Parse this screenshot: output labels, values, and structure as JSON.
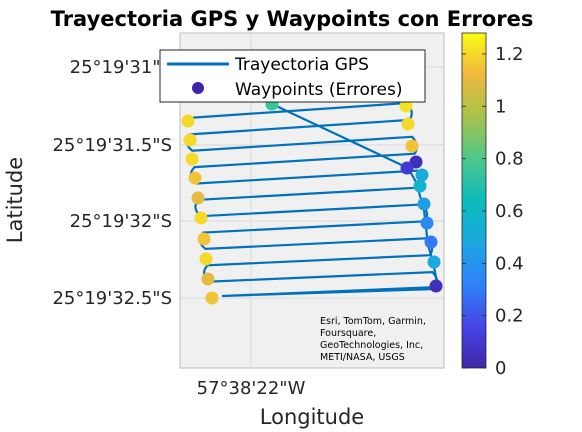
{
  "chart_data": {
    "type": "scatter",
    "title": "Trayectoria GPS y Waypoints con Errores",
    "xlabel": "Longitude",
    "ylabel": "Latitude",
    "x_ticks": [
      "57°38'22\"W"
    ],
    "y_ticks": [
      "25°19'31\"S",
      "25°19'31.5\"S",
      "25°19'32\"S",
      "25°19'32.5\"S"
    ],
    "legend": {
      "placement": "top",
      "entries": [
        {
          "label": "Trayectoria GPS",
          "kind": "line",
          "color": "#0072BD"
        },
        {
          "label": "Waypoints (Errores)",
          "kind": "marker",
          "color": "#3E26A8"
        }
      ]
    },
    "attribution": [
      "Esri, TomTom, Garmin,",
      "Foursquare,",
      "GeoTechnologies, Inc,",
      "METI/NASA, USGS"
    ],
    "colorbar": {
      "min": 0,
      "max": 1.28,
      "ticks": [
        0,
        0.2,
        0.4,
        0.6,
        0.8,
        1,
        1.2
      ],
      "tick_labels": [
        "0",
        "0.2",
        "0.4",
        "0.6",
        "0.8",
        "1",
        "1.2"
      ],
      "colormap": "parula"
    },
    "waypoint_errors": [
      1.2,
      1.2,
      1.2,
      1.15,
      1.1,
      1.2,
      1.15,
      1.2,
      1.1,
      1.15,
      1.12,
      0.75,
      1.22,
      1.2,
      1.15,
      0.05,
      0.1,
      0.5,
      0.55,
      0.45,
      0.35,
      0.3,
      0.5,
      0.05
    ],
    "colors": {
      "track": "#0072BD",
      "map_background": "#F0F0F0"
    }
  }
}
